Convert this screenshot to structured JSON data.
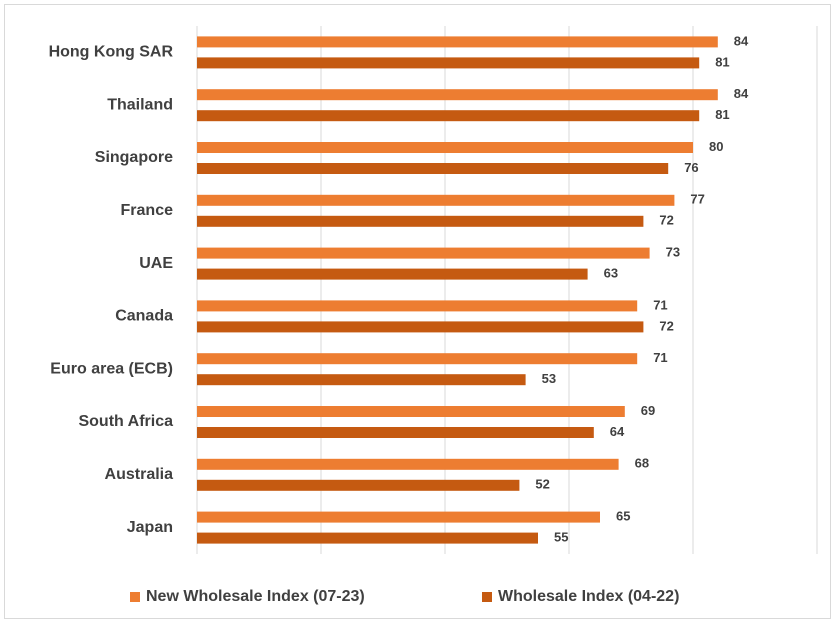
{
  "chart_data": {
    "type": "bar",
    "orientation": "horizontal",
    "categories": [
      "Hong Kong SAR",
      "Thailand",
      "Singapore",
      "France",
      "UAE",
      "Canada",
      "Euro area (ECB)",
      "South Africa",
      "Australia",
      "Japan"
    ],
    "series": [
      {
        "name": "New Wholesale Index (07-23)",
        "color": "#ed7d31",
        "values": [
          84,
          84,
          80,
          77,
          73,
          71,
          71,
          69,
          68,
          65
        ]
      },
      {
        "name": "Wholesale Index (04-22)",
        "color": "#c55a11",
        "values": [
          81,
          81,
          76,
          72,
          63,
          72,
          53,
          64,
          52,
          55
        ]
      }
    ],
    "xlim": [
      0,
      100
    ],
    "xticks": [
      0,
      20,
      40,
      60,
      80,
      100
    ],
    "grid": true,
    "legend": "bottom"
  }
}
